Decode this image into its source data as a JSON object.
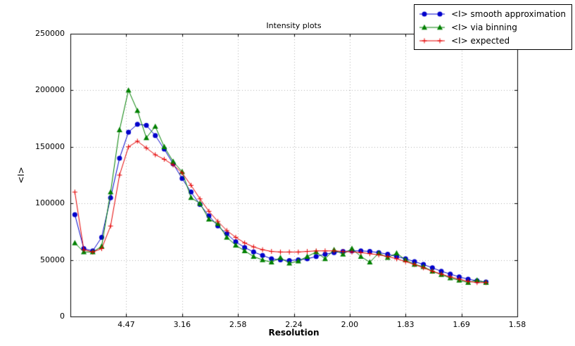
{
  "figure": {
    "title": "Intensity plots",
    "xlabel": "Resolution",
    "ylabel": "<I>"
  },
  "legend": {
    "position": "top-right",
    "items": [
      {
        "label": "<I> smooth approximation",
        "color": "#0000cc",
        "marker": "circle"
      },
      {
        "label": "<I> via binning",
        "color": "#008000",
        "marker": "triangle"
      },
      {
        "label": "<I> expected",
        "color": "#e60000",
        "marker": "plus"
      }
    ]
  },
  "chart_data": {
    "type": "line",
    "title": "Intensity plots",
    "xlabel": "Resolution",
    "ylabel": "<I>",
    "xlim": [
      0,
      0.4
    ],
    "ylim": [
      0,
      250000
    ],
    "grid": "dotted",
    "legend_position": "top-right",
    "xticks": [
      {
        "value": 0.05,
        "label": "4.47"
      },
      {
        "value": 0.1,
        "label": "3.16"
      },
      {
        "value": 0.15,
        "label": "2.58"
      },
      {
        "value": 0.2,
        "label": "2.24"
      },
      {
        "value": 0.25,
        "label": "2.00"
      },
      {
        "value": 0.3,
        "label": "1.83"
      },
      {
        "value": 0.35,
        "label": "1.69"
      },
      {
        "value": 0.4,
        "label": "1.58"
      }
    ],
    "yticks": [
      {
        "value": 0,
        "label": "0"
      },
      {
        "value": 50000,
        "label": "50000"
      },
      {
        "value": 100000,
        "label": "100000"
      },
      {
        "value": 150000,
        "label": "150000"
      },
      {
        "value": 200000,
        "label": "200000"
      },
      {
        "value": 250000,
        "label": "250000"
      }
    ],
    "x": [
      0.004,
      0.012,
      0.02,
      0.028,
      0.036,
      0.044,
      0.052,
      0.06,
      0.068,
      0.076,
      0.084,
      0.092,
      0.1,
      0.108,
      0.116,
      0.124,
      0.132,
      0.14,
      0.148,
      0.156,
      0.164,
      0.172,
      0.18,
      0.188,
      0.196,
      0.204,
      0.212,
      0.22,
      0.228,
      0.236,
      0.244,
      0.252,
      0.26,
      0.268,
      0.276,
      0.284,
      0.292,
      0.3,
      0.308,
      0.316,
      0.324,
      0.332,
      0.34,
      0.348,
      0.356,
      0.364,
      0.372
    ],
    "series": [
      {
        "name": "<I> smooth approximation",
        "marker": "circle",
        "color": "#0000cc",
        "values": [
          90000,
          60000,
          58000,
          70000,
          105000,
          140000,
          163000,
          170000,
          169000,
          160000,
          148000,
          135000,
          122000,
          110000,
          99000,
          89000,
          80000,
          73000,
          66000,
          61000,
          57000,
          54000,
          51000,
          50000,
          49500,
          50000,
          51000,
          53000,
          55000,
          56500,
          57500,
          58000,
          58000,
          57500,
          56500,
          55000,
          53000,
          51000,
          48500,
          46000,
          43000,
          40000,
          37500,
          35000,
          33000,
          31500,
          30500
        ]
      },
      {
        "name": "<I> via binning",
        "marker": "triangle",
        "color": "#008000",
        "values": [
          65000,
          57000,
          57000,
          62000,
          110000,
          165000,
          200000,
          182000,
          158000,
          168000,
          150000,
          137000,
          128000,
          105000,
          100000,
          86000,
          82000,
          70000,
          63000,
          58000,
          53000,
          50000,
          48000,
          52000,
          47000,
          49000,
          53000,
          57000,
          51000,
          59000,
          55000,
          60000,
          53000,
          48000,
          56000,
          52000,
          56000,
          50000,
          46000,
          44000,
          40000,
          37000,
          34000,
          32000,
          30000,
          32000,
          30000
        ]
      },
      {
        "name": "<I> expected",
        "marker": "plus",
        "color": "#e60000",
        "values": [
          110000,
          59000,
          57000,
          60000,
          80000,
          125000,
          150000,
          155000,
          149000,
          143000,
          139000,
          134000,
          127000,
          116000,
          104000,
          93000,
          84000,
          76000,
          70000,
          65000,
          61500,
          59000,
          57500,
          57000,
          57000,
          57000,
          57500,
          58000,
          58000,
          58000,
          57500,
          57000,
          56500,
          55500,
          54500,
          53000,
          51000,
          48500,
          46000,
          43000,
          40000,
          37500,
          35000,
          33000,
          31000,
          30000,
          30000
        ]
      }
    ]
  }
}
